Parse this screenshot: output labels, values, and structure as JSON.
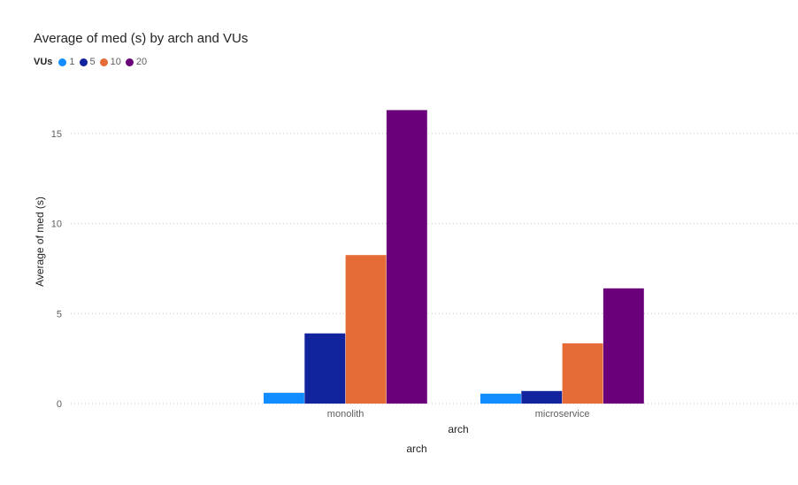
{
  "chart_data": {
    "type": "bar",
    "title": "Average of med (s) by arch and VUs",
    "legend_title": "VUs",
    "legend_position": "top-left",
    "xlabel": "arch",
    "xlabel_secondary": "arch",
    "ylabel": "Average of med (s)",
    "ylim": [
      0,
      17.5
    ],
    "yticks": [
      "0",
      "5",
      "10",
      "15"
    ],
    "grid": true,
    "categories": [
      "monolith",
      "microservice"
    ],
    "series": [
      {
        "name": "1",
        "color": "#118DFF",
        "values": [
          0.6,
          0.55
        ]
      },
      {
        "name": "5",
        "color": "#12239E",
        "values": [
          3.9,
          0.7
        ]
      },
      {
        "name": "10",
        "color": "#E66C37",
        "values": [
          8.25,
          3.35
        ]
      },
      {
        "name": "20",
        "color": "#6B007B",
        "values": [
          16.3,
          6.4
        ]
      }
    ]
  }
}
